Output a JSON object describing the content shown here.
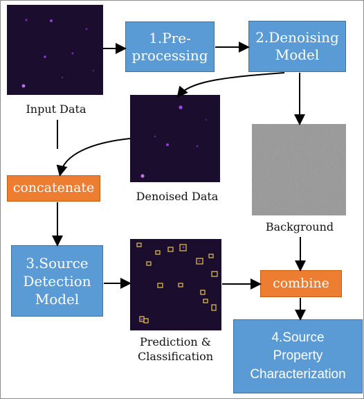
{
  "nodes": {
    "preprocessing": "1.Pre-\nprocessing",
    "denoising_model": "2.Denoising\nModel",
    "concatenate": "concatenate",
    "source_detection": "3.Source\nDetection\nModel",
    "combine": "combine",
    "source_property": "4.Source\nProperty\nCharacterization"
  },
  "labels": {
    "input_data": "Input Data",
    "denoised_data": "Denoised Data",
    "background": "Background",
    "prediction": "Prediction &\nClassification"
  },
  "colors": {
    "process_box": "#5b9bd5",
    "operation_box": "#ed7d31",
    "astronomy_image_bg": "#1b0d2d",
    "source_dot": "#b04cff",
    "detection_box": "#e8c84a"
  }
}
